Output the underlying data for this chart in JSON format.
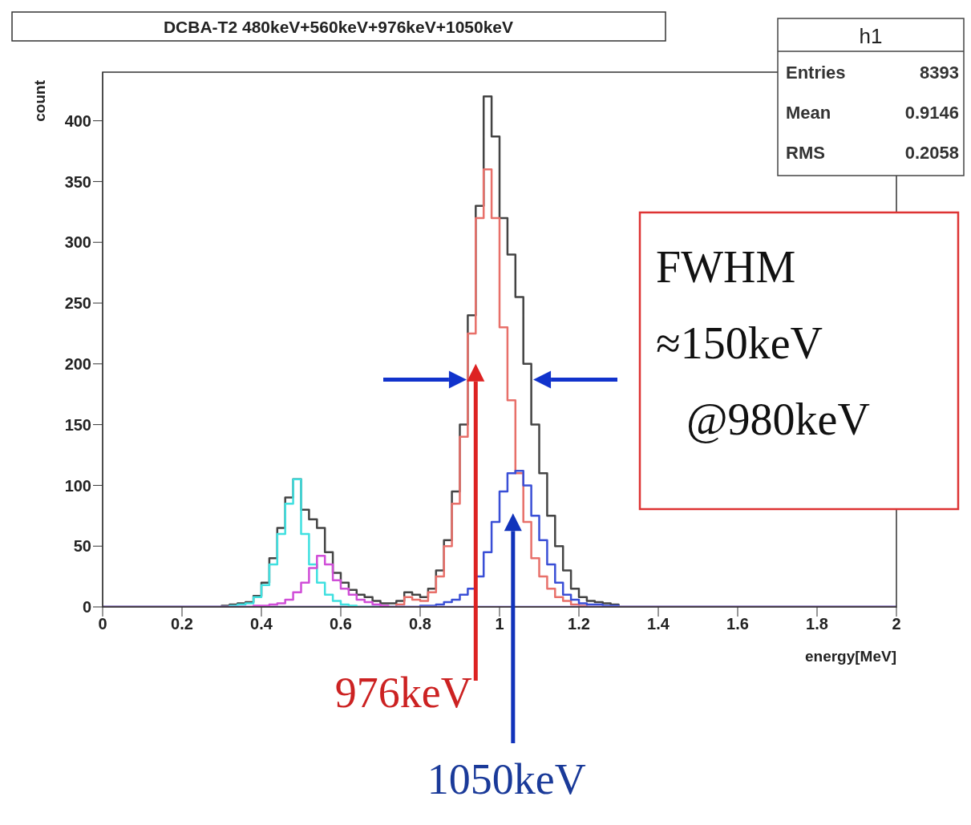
{
  "chart_data": {
    "type": "histogram",
    "title": "DCBA-T2 480keV+560keV+976keV+1050keV",
    "xlabel": "energy[MeV]",
    "ylabel": "count",
    "bins": [
      0,
      0.3,
      0.32,
      0.34,
      0.36,
      0.38,
      0.4,
      0.42,
      0.44,
      0.46,
      0.48,
      0.5,
      0.52,
      0.54,
      0.56,
      0.58,
      0.6,
      0.62,
      0.64,
      0.66,
      0.68,
      0.7,
      0.72,
      0.74,
      0.76,
      0.78,
      0.8,
      0.82,
      0.84,
      0.86,
      0.88,
      0.9,
      0.92,
      0.94,
      0.96,
      0.98,
      1,
      1.02,
      1.04,
      1.06,
      1.08,
      1.1,
      1.12,
      1.14,
      1.16,
      1.18,
      1.2,
      1.22,
      1.24,
      1.26,
      1.28,
      1.3,
      2
    ],
    "series": [
      {
        "color": "#444444",
        "values": [
          0,
          1,
          2,
          3,
          4,
          9,
          20,
          40,
          65,
          90,
          105,
          80,
          72,
          65,
          45,
          28,
          20,
          14,
          10,
          8,
          5,
          3,
          3,
          5,
          12,
          10,
          8,
          15,
          30,
          55,
          95,
          150,
          240,
          330,
          420,
          387,
          320,
          290,
          255,
          200,
          150,
          110,
          75,
          50,
          30,
          15,
          8,
          5,
          4,
          3,
          2,
          0
        ]
      },
      {
        "color": "#e8706a",
        "values": [
          0,
          0,
          0,
          0,
          0,
          0,
          0,
          0,
          0,
          0,
          0,
          0,
          0,
          0,
          0,
          0,
          0,
          0,
          0,
          0,
          0,
          0,
          0,
          2,
          8,
          6,
          5,
          12,
          25,
          50,
          85,
          140,
          225,
          320,
          360,
          320,
          230,
          170,
          110,
          70,
          40,
          25,
          15,
          8,
          5,
          2,
          1,
          0,
          0,
          0,
          0,
          0
        ]
      },
      {
        "color": "#3a4fd6",
        "values": [
          0,
          0,
          0,
          0,
          0,
          0,
          0,
          0,
          0,
          0,
          0,
          0,
          0,
          0,
          0,
          0,
          0,
          0,
          0,
          0,
          0,
          0,
          0,
          0,
          0,
          0,
          1,
          1,
          2,
          4,
          6,
          10,
          15,
          25,
          45,
          70,
          95,
          110,
          112,
          100,
          75,
          55,
          35,
          20,
          10,
          6,
          3,
          2,
          2,
          1,
          1,
          0
        ]
      },
      {
        "color": "#40e0e0",
        "values": [
          0,
          0,
          1,
          2,
          3,
          8,
          18,
          35,
          60,
          85,
          105,
          60,
          35,
          20,
          10,
          5,
          2,
          1,
          0,
          0,
          0,
          0,
          0,
          0,
          0,
          0,
          0,
          0,
          0,
          0,
          0,
          0,
          0,
          0,
          0,
          0,
          0,
          0,
          0,
          0,
          0,
          0,
          0,
          0,
          0,
          0,
          0,
          0,
          0,
          0,
          0,
          0
        ]
      },
      {
        "color": "#d04ed8",
        "values": [
          0,
          0,
          0,
          0,
          0,
          1,
          1,
          2,
          3,
          6,
          12,
          20,
          32,
          42,
          35,
          22,
          15,
          10,
          6,
          4,
          2,
          1,
          0,
          0,
          0,
          0,
          0,
          0,
          0,
          0,
          0,
          0,
          0,
          0,
          0,
          0,
          0,
          0,
          0,
          0,
          0,
          0,
          0,
          0,
          0,
          0,
          0,
          0,
          0,
          0,
          0,
          0
        ]
      }
    ],
    "xlim": [
      0,
      2
    ],
    "xticks": [
      0,
      0.2,
      0.4,
      0.6,
      0.8,
      1,
      1.2,
      1.4,
      1.6,
      1.8,
      2
    ],
    "ylim": [
      0,
      440
    ],
    "yticks": [
      0,
      50,
      100,
      150,
      200,
      250,
      300,
      350,
      400
    ],
    "annotations": [
      "h1",
      "Entries 8393",
      "Mean 0.9146",
      "RMS 0.2058",
      "FWHM ≈150keV @980keV",
      "976keV",
      "1050keV"
    ]
  }
}
